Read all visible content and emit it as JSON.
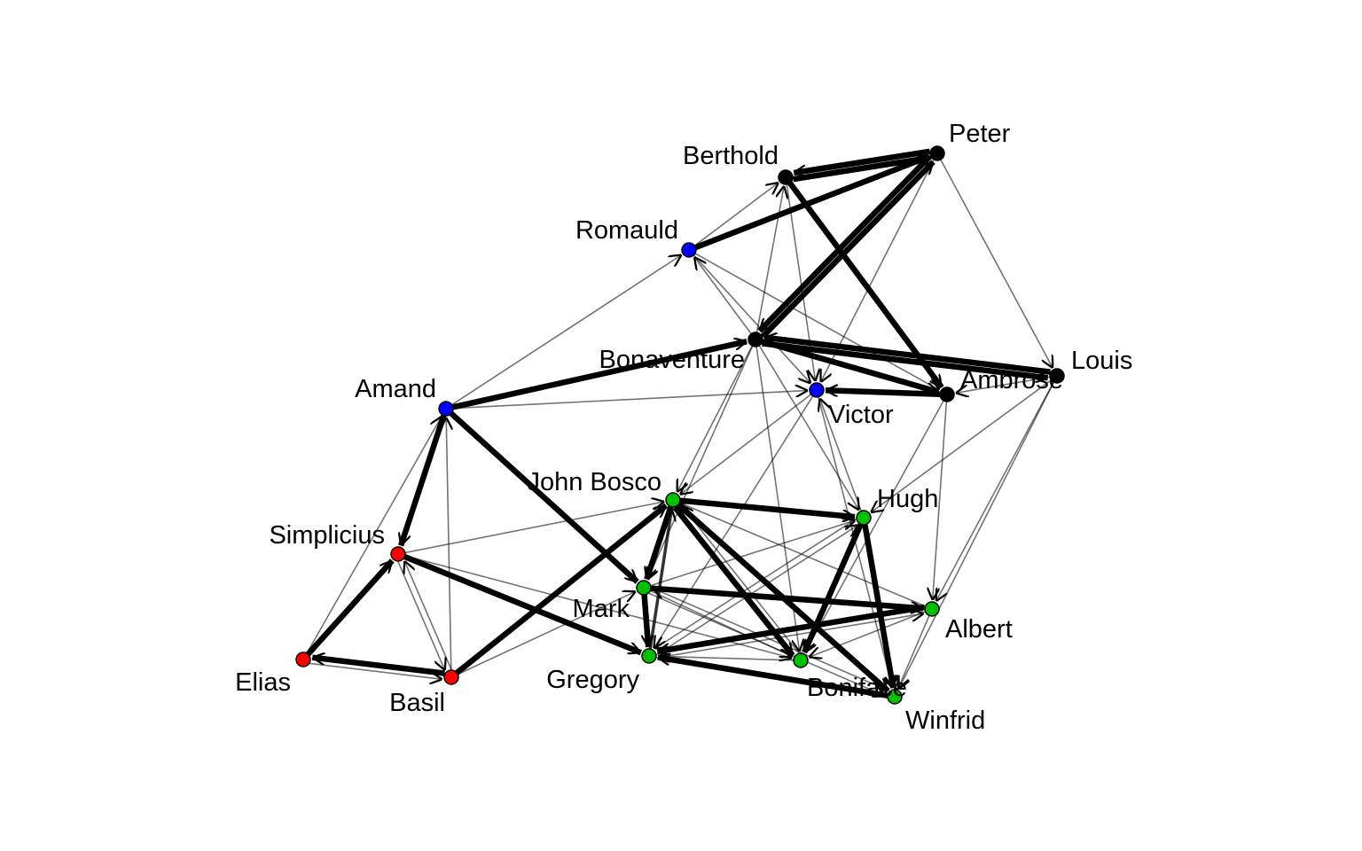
{
  "group_colors": {
    "black": "#000000",
    "blue": "#0000ff",
    "green": "#00c000",
    "red": "#ff0000"
  },
  "nodes": [
    {
      "id": "Peter",
      "label": "Peter",
      "group": "black"
    },
    {
      "id": "Berthold",
      "label": "Berthold",
      "group": "black"
    },
    {
      "id": "Romauld",
      "label": "Romauld",
      "group": "blue"
    },
    {
      "id": "Bonaventure",
      "label": "Bonaventure",
      "group": "black"
    },
    {
      "id": "Louis",
      "label": "Louis",
      "group": "black"
    },
    {
      "id": "Ambrose",
      "label": "Ambrose",
      "group": "black"
    },
    {
      "id": "Victor",
      "label": "Victor",
      "group": "blue"
    },
    {
      "id": "Amand",
      "label": "Amand",
      "group": "blue"
    },
    {
      "id": "JohnBosco",
      "label": "John Bosco",
      "group": "green"
    },
    {
      "id": "Hugh",
      "label": "Hugh",
      "group": "green"
    },
    {
      "id": "Simplicius",
      "label": "Simplicius",
      "group": "red"
    },
    {
      "id": "Mark",
      "label": "Mark",
      "group": "green"
    },
    {
      "id": "Albert",
      "label": "Albert",
      "group": "green"
    },
    {
      "id": "Elias",
      "label": "Elias",
      "group": "red"
    },
    {
      "id": "Basil",
      "label": "Basil",
      "group": "red"
    },
    {
      "id": "Gregory",
      "label": "Gregory",
      "group": "green"
    },
    {
      "id": "Boniface",
      "label": "Boniface",
      "group": "green"
    },
    {
      "id": "Winfrid",
      "label": "Winfrid",
      "group": "green"
    }
  ],
  "edges": [
    {
      "from": "Berthold",
      "to": "Peter",
      "weight": 3
    },
    {
      "from": "Peter",
      "to": "Berthold",
      "weight": 3
    },
    {
      "from": "Romauld",
      "to": "Peter",
      "weight": 3
    },
    {
      "from": "Bonaventure",
      "to": "Peter",
      "weight": 3
    },
    {
      "from": "Peter",
      "to": "Bonaventure",
      "weight": 3
    },
    {
      "from": "Berthold",
      "to": "Ambrose",
      "weight": 3
    },
    {
      "from": "Bonaventure",
      "to": "Louis",
      "weight": 3
    },
    {
      "from": "Louis",
      "to": "Bonaventure",
      "weight": 3
    },
    {
      "from": "Bonaventure",
      "to": "Ambrose",
      "weight": 3
    },
    {
      "from": "Ambrose",
      "to": "Victor",
      "weight": 3
    },
    {
      "from": "Amand",
      "to": "Bonaventure",
      "weight": 3
    },
    {
      "from": "Amand",
      "to": "Simplicius",
      "weight": 3
    },
    {
      "from": "Amand",
      "to": "Mark",
      "weight": 3
    },
    {
      "from": "Elias",
      "to": "Simplicius",
      "weight": 3
    },
    {
      "from": "Basil",
      "to": "Elias",
      "weight": 3
    },
    {
      "from": "Simplicius",
      "to": "Gregory",
      "weight": 3
    },
    {
      "from": "Basil",
      "to": "JohnBosco",
      "weight": 3
    },
    {
      "from": "JohnBosco",
      "to": "Hugh",
      "weight": 3
    },
    {
      "from": "JohnBosco",
      "to": "Mark",
      "weight": 3
    },
    {
      "from": "JohnBosco",
      "to": "Boniface",
      "weight": 3
    },
    {
      "from": "JohnBosco",
      "to": "Winfrid",
      "weight": 3
    },
    {
      "from": "Mark",
      "to": "Albert",
      "weight": 3
    },
    {
      "from": "Mark",
      "to": "Gregory",
      "weight": 3
    },
    {
      "from": "Albert",
      "to": "Gregory",
      "weight": 3
    },
    {
      "from": "Hugh",
      "to": "Boniface",
      "weight": 3
    },
    {
      "from": "Hugh",
      "to": "Winfrid",
      "weight": 3
    },
    {
      "from": "Winfrid",
      "to": "Gregory",
      "weight": 3
    },
    {
      "from": "Gregory",
      "to": "JohnBosco",
      "weight": 2
    },
    {
      "from": "Peter",
      "to": "Victor",
      "weight": 1
    },
    {
      "from": "Peter",
      "to": "Louis",
      "weight": 1
    },
    {
      "from": "Romauld",
      "to": "Berthold",
      "weight": 1
    },
    {
      "from": "Bonaventure",
      "to": "Berthold",
      "weight": 1
    },
    {
      "from": "Berthold",
      "to": "Victor",
      "weight": 1
    },
    {
      "from": "Romauld",
      "to": "Victor",
      "weight": 1
    },
    {
      "from": "Romauld",
      "to": "Ambrose",
      "weight": 1
    },
    {
      "from": "Bonaventure",
      "to": "Romauld",
      "weight": 1
    },
    {
      "from": "Amand",
      "to": "Romauld",
      "weight": 1
    },
    {
      "from": "Amand",
      "to": "Victor",
      "weight": 1
    },
    {
      "from": "Louis",
      "to": "Ambrose",
      "weight": 1
    },
    {
      "from": "Louis",
      "to": "Hugh",
      "weight": 1
    },
    {
      "from": "Louis",
      "to": "Albert",
      "weight": 1
    },
    {
      "from": "Louis",
      "to": "Winfrid",
      "weight": 1
    },
    {
      "from": "Ambrose",
      "to": "Albert",
      "weight": 1
    },
    {
      "from": "Ambrose",
      "to": "Boniface",
      "weight": 1
    },
    {
      "from": "Bonaventure",
      "to": "JohnBosco",
      "weight": 1
    },
    {
      "from": "Bonaventure",
      "to": "Hugh",
      "weight": 1
    },
    {
      "from": "Bonaventure",
      "to": "Mark",
      "weight": 1
    },
    {
      "from": "Bonaventure",
      "to": "Boniface",
      "weight": 1
    },
    {
      "from": "Victor",
      "to": "JohnBosco",
      "weight": 1
    },
    {
      "from": "Victor",
      "to": "Gregory",
      "weight": 1
    },
    {
      "from": "Victor",
      "to": "Winfrid",
      "weight": 1
    },
    {
      "from": "Elias",
      "to": "Amand",
      "weight": 1
    },
    {
      "from": "Simplicius",
      "to": "Basil",
      "weight": 1
    },
    {
      "from": "Simplicius",
      "to": "Boniface",
      "weight": 1
    },
    {
      "from": "Simplicius",
      "to": "JohnBosco",
      "weight": 1
    },
    {
      "from": "Basil",
      "to": "Simplicius",
      "weight": 1
    },
    {
      "from": "Basil",
      "to": "Amand",
      "weight": 1
    },
    {
      "from": "Elias",
      "to": "Basil",
      "weight": 1
    },
    {
      "from": "Basil",
      "to": "Mark",
      "weight": 1
    },
    {
      "from": "Mark",
      "to": "Hugh",
      "weight": 1
    },
    {
      "from": "Mark",
      "to": "Winfrid",
      "weight": 1
    },
    {
      "from": "Mark",
      "to": "Boniface",
      "weight": 1
    },
    {
      "from": "Albert",
      "to": "Boniface",
      "weight": 1
    },
    {
      "from": "Albert",
      "to": "Winfrid",
      "weight": 1
    },
    {
      "from": "Albert",
      "to": "JohnBosco",
      "weight": 1
    },
    {
      "from": "Boniface",
      "to": "Gregory",
      "weight": 1
    },
    {
      "from": "Boniface",
      "to": "JohnBosco",
      "weight": 1
    },
    {
      "from": "Winfrid",
      "to": "Mark",
      "weight": 1
    },
    {
      "from": "Hugh",
      "to": "Gregory",
      "weight": 1
    },
    {
      "from": "Hugh",
      "to": "Victor",
      "weight": 1
    },
    {
      "from": "Gregory",
      "to": "Hugh",
      "weight": 1
    },
    {
      "from": "Gregory",
      "to": "Albert",
      "weight": 1
    }
  ]
}
